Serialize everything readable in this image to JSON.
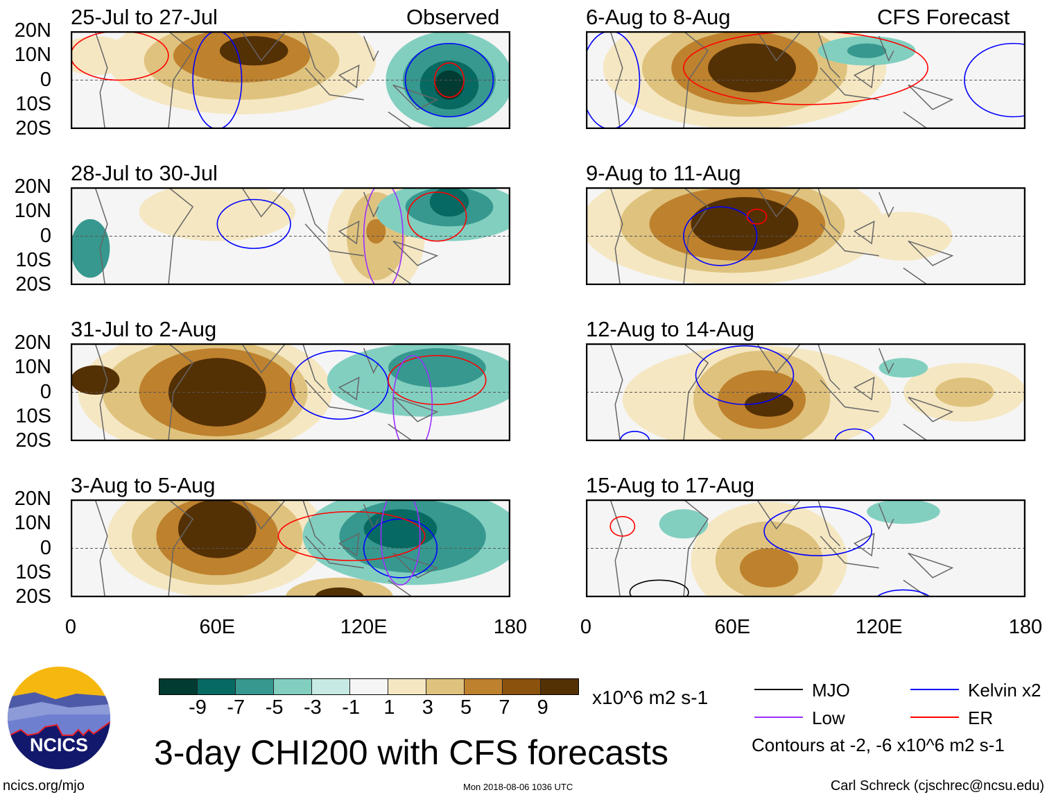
{
  "title": "3-day CHI200 with CFS forecasts",
  "columns": {
    "left_label": "Observed",
    "right_label": "CFS Forecast"
  },
  "lat_ticks": [
    "20N",
    "10N",
    "0",
    "10S",
    "20S"
  ],
  "lon_ticks": [
    "0",
    "60E",
    "120E",
    "180"
  ],
  "colorbar": {
    "colors": [
      "#013b31",
      "#066a62",
      "#37988f",
      "#82cfc0",
      "#c7eae4",
      "#f5f5f5",
      "#f5e7c2",
      "#dfc27d",
      "#be812d",
      "#8b520d",
      "#543005"
    ],
    "labels": [
      "-9",
      "-7",
      "-5",
      "-3",
      "-1",
      "1",
      "3",
      "5",
      "7",
      "9"
    ],
    "units": "x10^6 m2 s-1"
  },
  "legend": {
    "items": [
      {
        "label": "MJO",
        "color": "#000000"
      },
      {
        "label": "Kelvin x2",
        "color": "#0000ff"
      },
      {
        "label": "Low",
        "color": "#9b30ff"
      },
      {
        "label": "ER",
        "color": "#ff0000"
      }
    ],
    "note": "Contours at -2, -6 x10^6 m2 s-1"
  },
  "logo": {
    "text": "NCICS"
  },
  "footer": {
    "url": "ncics.org/mjo",
    "timestamp": "Mon 2018-08-06 1036 UTC",
    "credit": "Carl Schreck (cjschrec@ncsu.edu)"
  },
  "chart_data": {
    "type": "heatmap",
    "variable": "CHI200 anomaly",
    "xlim": [
      0,
      180
    ],
    "ylim": [
      -20,
      20
    ],
    "panels": [
      {
        "title": "25-Jul to 27-Jul",
        "source": "Observed"
      },
      {
        "title": "28-Jul to 30-Jul",
        "source": "Observed"
      },
      {
        "title": "31-Jul to 2-Aug",
        "source": "Observed"
      },
      {
        "title": "3-Aug to 5-Aug",
        "source": "Observed"
      },
      {
        "title": "6-Aug to 8-Aug",
        "source": "CFS Forecast"
      },
      {
        "title": "9-Aug to 11-Aug",
        "source": "CFS Forecast"
      },
      {
        "title": "12-Aug to 14-Aug",
        "source": "CFS Forecast"
      },
      {
        "title": "15-Aug to 17-Aug",
        "source": "CFS Forecast"
      }
    ]
  }
}
